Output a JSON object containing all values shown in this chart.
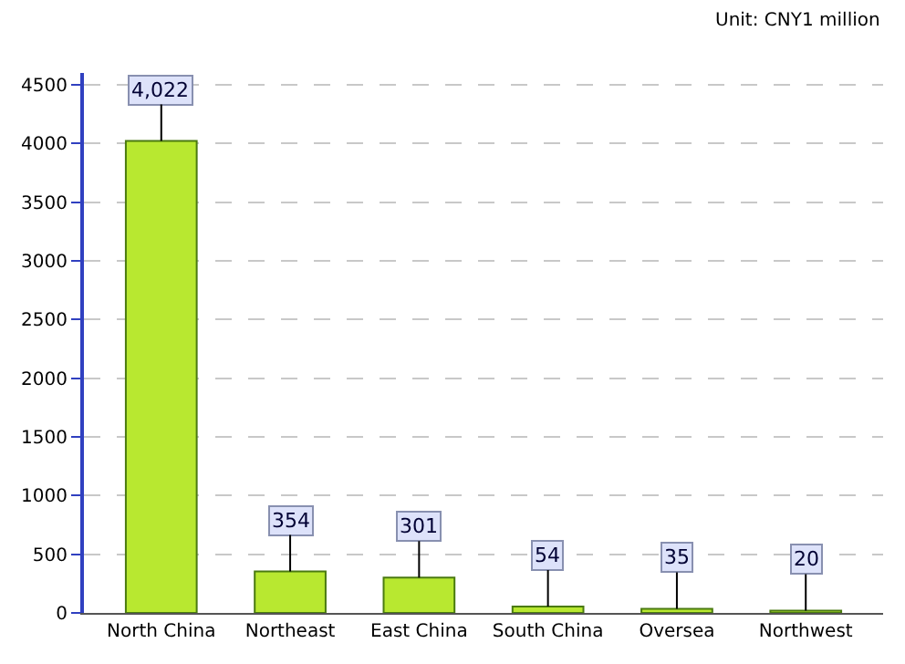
{
  "chart_data": {
    "type": "bar",
    "categories": [
      "North China",
      "Northeast",
      "East China",
      "South China",
      "Oversea",
      "Northwest"
    ],
    "values": [
      4022,
      354,
      301,
      54,
      35,
      20
    ],
    "value_labels": [
      "4,022",
      "354",
      "301",
      "54",
      "35",
      "20"
    ],
    "color": "#b8e830",
    "ylim": [
      0,
      4600
    ],
    "yticks": [
      0,
      500,
      1000,
      1500,
      2000,
      2500,
      3000,
      3500,
      4000,
      4500
    ],
    "grid": "y",
    "legend": false,
    "annotations": [
      "Unit: CNY1 million"
    ]
  }
}
